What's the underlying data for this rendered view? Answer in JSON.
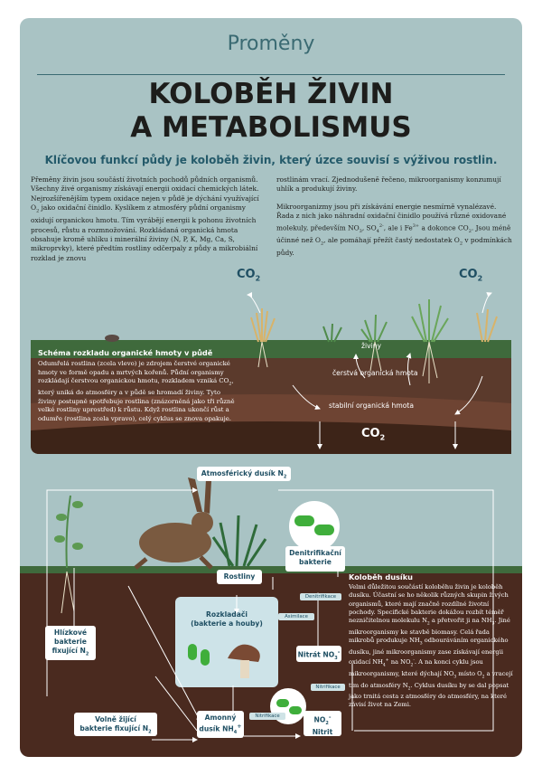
{
  "header": {
    "topic": "Proměny",
    "title_line1": "KOLOBĚH ŽIVIN",
    "title_line2": "A METABOLISMUS",
    "subtitle": "Klíčovou funkcí půdy je koloběh živin, který úzce souvisí s výživou rostlin."
  },
  "intro": {
    "col1_p1_a": "Přeměny živin jsou součástí životních pochodů půdních organismů. Všechny živé organismy získávají energii oxidací chemických látek. Nejrozšířenějším typem oxidace nejen v půdě je dýchání využívající O",
    "col1_p1_b": " jako oxidační činidlo. Kyslíkem z atmosféry půdní organismy oxidují organickou hmotu. Tím vyrábějí energii k pohonu životních procesů, růstu a rozmnožování. Rozkládaná organická hmota obsahuje kromě uhlíku i minerální živiny (N, P, K, Mg, Ca, S, mikroprvky), které předtím rostliny odčerpaly z půdy a mikrobiální rozklad je znovu",
    "col2_p1": "rostlinám vrací. Zjednodušeně řečeno, mikroorganismy konzumují uhlík a produkují živiny.",
    "col2_p2_a": "Mikroorganizmy jsou při získávání energie nesmírně vynalézavé. Řada z nich jako náhradní oxidační činidlo používá různé oxidované molekuly, především NO",
    "col2_p2_b": ", SO",
    "col2_p2_c": ", ale i Fe",
    "col2_p2_d": " a dokonce CO",
    "col2_p2_e": ". Jsou méně účinné než O",
    "col2_p2_f": ", ale pomáhají přežít častý nedostatek O",
    "col2_p2_g": " v podmínkách půdy.",
    "sub_2": "2",
    "sub_3": "3",
    "sup_2m": "2-",
    "sub_4": "4",
    "sup_3p": "3+"
  },
  "scene": {
    "co2_left": "CO",
    "co2_right": "CO",
    "co2_bottom": "CO",
    "co2_sub": "2",
    "layer_living": "živiny",
    "layer_fresh": "čerstvá organická hmota",
    "layer_stable": "stabilní organická hmota"
  },
  "decomposition": {
    "title": "Schéma rozkladu organické hmoty v půdě",
    "text_a": "Odumřelá rostlina (zcela vlevo) je zdrojem čerstvé organické hmoty ve formě opadu a mrtvých kořenů. Půdní organismy rozkládají čerstvou organickou hmotu, rozkladem vzniká CO",
    "text_sub": "2",
    "text_b": ", který uniká do atmosféry a v půdě se hromadí živiny. Tyto živiny postupně spotřebuje rostlina (znázorněná jako tři různě velké rostliny uprostřed) k růstu. Když rostlina ukončí růst a odumře (rostlina zcela vpravo), celý cyklus se znova opakuje."
  },
  "nitrogen_cycle": {
    "atmospheric_a": "Atmosférický dusík N",
    "sub_2": "2",
    "plants": "Rostliny",
    "decomposers_1": "Rozkladači",
    "decomposers_2": "(bakterie a houby)",
    "denitrifying_1": "Denitrifikační",
    "denitrifying_2": "bakterie",
    "symbiotic_1": "Hlízkové",
    "symbiotic_2": "bakterie",
    "symbiotic_3a": "fixující N",
    "free_1": "Volně žijící",
    "free_2a": "bakterie fixující N",
    "ammonium_1": "Amonný",
    "ammonium_2a": "dusík NH",
    "ammonium_sup": "4",
    "ammonium_plus": "+",
    "nitrate_a": "Nitrát NO",
    "nitrate_sub": "3",
    "nitrate_minus": "-",
    "nitrite_a": "NO",
    "nitrite_sub": "2",
    "nitrite_minus": "-",
    "nitrite_2": "Nitrit",
    "tag_denitrification": "Denitrifikace",
    "tag_assimilation": "Asimilace",
    "tag_nitrification_upper": "Nitrifikace",
    "tag_nitrification_lower": "Nitrifikace"
  },
  "nitrogen_text": {
    "title": "Koloběh dusíku",
    "p1": "Velmi důležitou součástí koloběhu živin je koloběh dusíku. Účastní se ho několik různých skupin živých organismů, které mají značně rozdílné životní pochody. Specifické bakterie dokážou rozbít téměř nezničitelnou molekulu N",
    "p2": " a přetvořit ji na NH",
    "p3": ". Jiné mikroorganismy ke stavbě biomasy. Celá řada mikrobů produkuje NH",
    "p3b": " odbouráváním organického dusíku, jiné mikroorganismy zase získávají energii oxidací NH",
    "p4": " na NO",
    "p5": ". A na konci cyklu jsou mikroorganismy, které dýchají NO",
    "p6": " místo O",
    "p7": " a vracejí tím do atmosféry N",
    "p8": ". Cyklus dusíku by se dal popsat jako trnitá cesta z atmosféry do atmosféry, na které závisí život na Zemi.",
    "nh4_line": "NH",
    "nh4_rest": " čerpají rostliny a mikroorganismy ke",
    "sub_2": "2",
    "sub_3": "3",
    "sub_4": "4",
    "sup_plus": "+",
    "sup_minus": "-"
  },
  "colors": {
    "background": "#a9c3c4",
    "title_accent": "#3a6a72",
    "soil_dark": "#4a2a1f",
    "grass": "#3f6a3c"
  }
}
